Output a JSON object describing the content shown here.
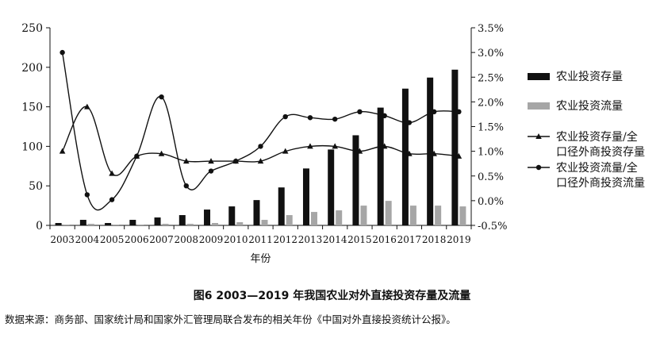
{
  "chart_data": {
    "type": "bar",
    "xlabel": "年份",
    "categories": [
      "2003",
      "2004",
      "2005",
      "2006",
      "2007",
      "2008",
      "2009",
      "2010",
      "2011",
      "2012",
      "2013",
      "2014",
      "2015",
      "2016",
      "2017",
      "2018",
      "2019"
    ],
    "y_left": {
      "ylim": [
        0,
        250
      ],
      "ticks": [
        "0",
        "50",
        "100",
        "150",
        "200",
        "250"
      ]
    },
    "y_right": {
      "ylim": [
        -0.5,
        3.5
      ],
      "ticks": [
        "-0.5%",
        "0.0%",
        "0.5%",
        "1.0%",
        "1.5%",
        "2.0%",
        "2.5%",
        "3.0%",
        "3.5%"
      ]
    },
    "series": [
      {
        "name": "农业投资存量",
        "kind": "bar",
        "axis": "left",
        "color": "#111111",
        "values": [
          3,
          7,
          3,
          7,
          10,
          13,
          20,
          24,
          32,
          48,
          72,
          96,
          114,
          149,
          173,
          187,
          197
        ]
      },
      {
        "name": "农业投资流量",
        "kind": "bar",
        "axis": "left",
        "color": "#a6a6a6",
        "values": [
          1,
          2,
          1,
          1,
          2,
          2,
          3,
          4,
          7,
          13,
          17,
          19,
          25,
          31,
          25,
          25,
          24
        ]
      },
      {
        "name": "农业投资存量/全口径外商投资存量",
        "name_lines": [
          "农业投资存量/全",
          "口径外商投资存量"
        ],
        "kind": "line",
        "marker": "triangle",
        "axis": "right",
        "color": "#111111",
        "values": [
          1.0,
          1.9,
          0.55,
          0.9,
          0.95,
          0.8,
          0.8,
          0.8,
          0.8,
          1.0,
          1.1,
          1.1,
          1.0,
          1.1,
          0.95,
          0.95,
          0.9
        ]
      },
      {
        "name": "农业投资流量/全口径外商投资流量",
        "name_lines": [
          "农业投资流量/全",
          "口径外商投资流量"
        ],
        "kind": "line",
        "marker": "circle",
        "axis": "right",
        "color": "#111111",
        "values": [
          3.0,
          0.12,
          0.02,
          0.9,
          2.1,
          0.3,
          0.6,
          0.8,
          1.1,
          1.7,
          1.68,
          1.65,
          1.8,
          1.72,
          1.58,
          1.8,
          1.8
        ]
      }
    ],
    "legend_position": "right"
  },
  "caption": "图6   2003—2019 年我国农业对外直接投资存量及流量",
  "source": "数据来源：商务部、国家统计局和国家外汇管理局联合发布的相关年份《中国对外直接投资统计公报》。"
}
